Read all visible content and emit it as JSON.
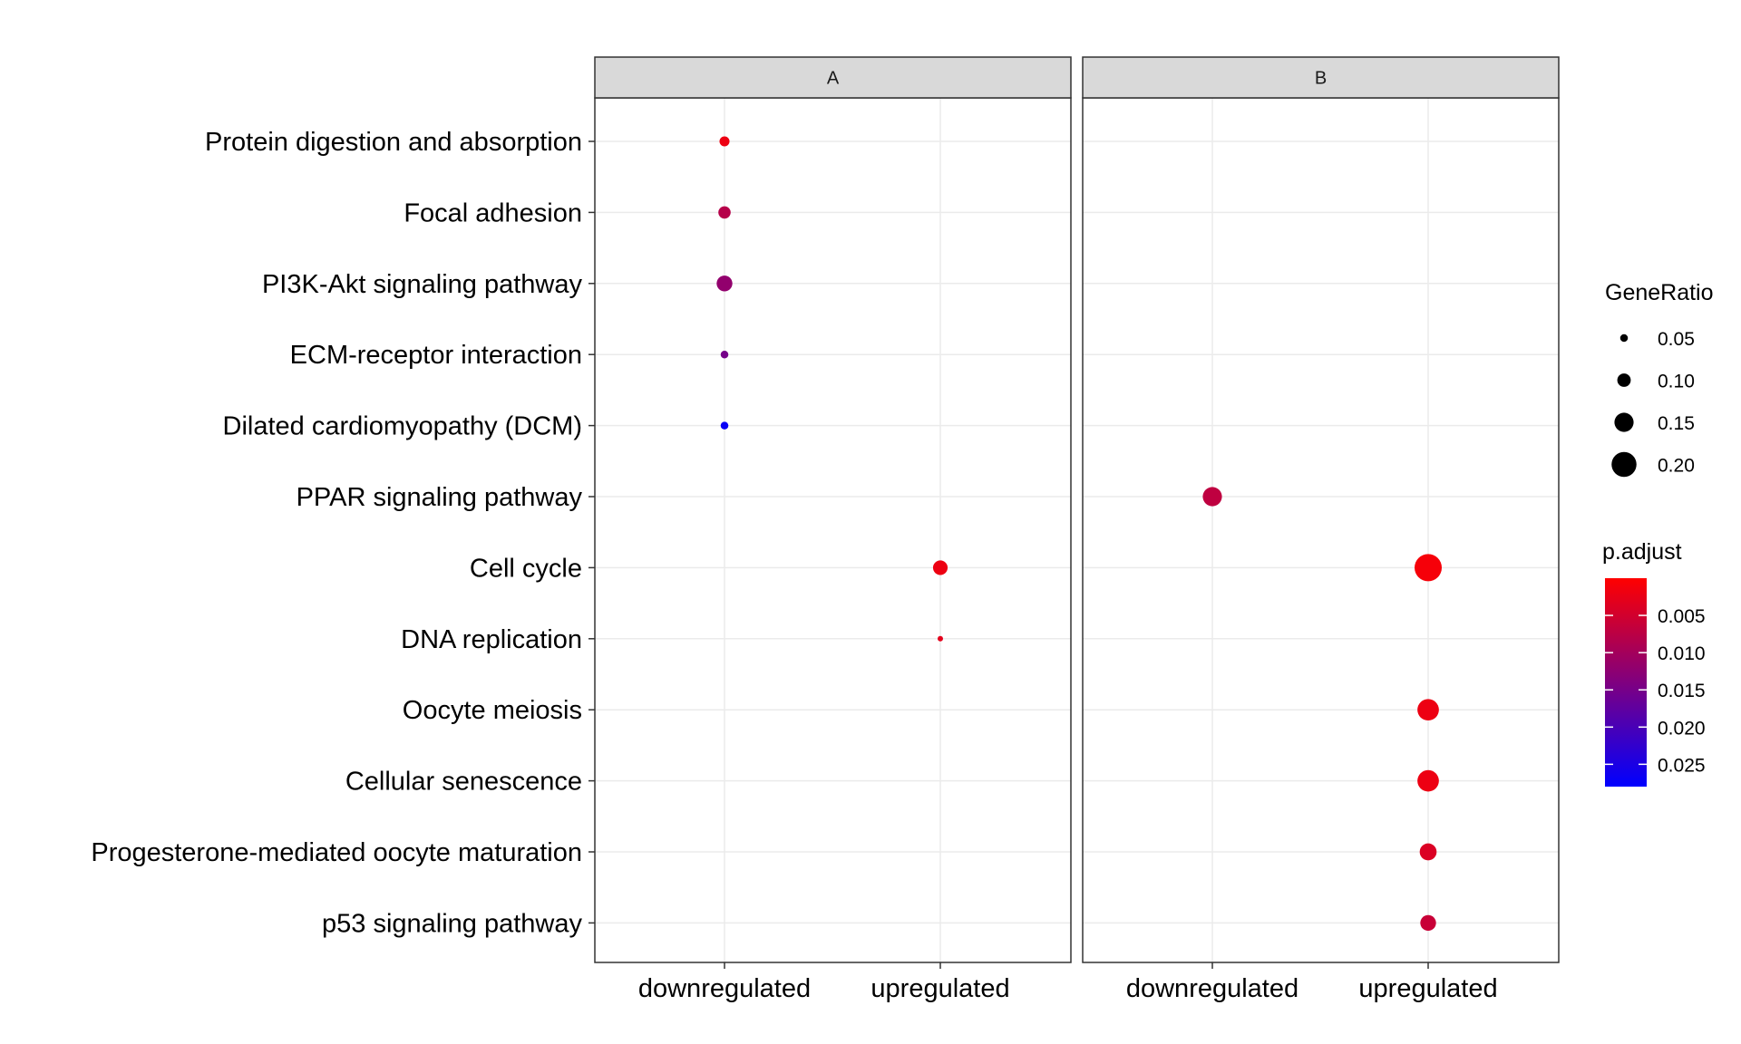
{
  "chart_data": {
    "type": "scatter",
    "panels": [
      "A",
      "B"
    ],
    "x_categories": [
      "downregulated",
      "upregulated"
    ],
    "y_categories": [
      "Protein digestion and absorption",
      "Focal adhesion",
      "PI3K-Akt signaling pathway",
      "ECM-receptor interaction",
      "Dilated cardiomyopathy (DCM)",
      "PPAR signaling pathway",
      "Cell cycle",
      "DNA replication",
      "Oocyte meiosis",
      "Cellular senescence",
      "Progesterone-mediated oocyte maturation",
      "p53 signaling pathway"
    ],
    "points": [
      {
        "panel": "A",
        "x": "downregulated",
        "y": "Protein digestion and absorption",
        "gene_ratio": 0.07,
        "p_adjust": 0.002
      },
      {
        "panel": "A",
        "x": "downregulated",
        "y": "Focal adhesion",
        "gene_ratio": 0.09,
        "p_adjust": 0.008
      },
      {
        "panel": "A",
        "x": "downregulated",
        "y": "PI3K-Akt signaling pathway",
        "gene_ratio": 0.12,
        "p_adjust": 0.012
      },
      {
        "panel": "A",
        "x": "downregulated",
        "y": "ECM-receptor interaction",
        "gene_ratio": 0.05,
        "p_adjust": 0.015
      },
      {
        "panel": "A",
        "x": "downregulated",
        "y": "Dilated cardiomyopathy (DCM)",
        "gene_ratio": 0.05,
        "p_adjust": 0.027
      },
      {
        "panel": "A",
        "x": "upregulated",
        "y": "Cell cycle",
        "gene_ratio": 0.11,
        "p_adjust": 0.002
      },
      {
        "panel": "A",
        "x": "upregulated",
        "y": "DNA replication",
        "gene_ratio": 0.03,
        "p_adjust": 0.003
      },
      {
        "panel": "B",
        "x": "downregulated",
        "y": "PPAR signaling pathway",
        "gene_ratio": 0.15,
        "p_adjust": 0.007
      },
      {
        "panel": "B",
        "x": "upregulated",
        "y": "Cell cycle",
        "gene_ratio": 0.22,
        "p_adjust": 0.001
      },
      {
        "panel": "B",
        "x": "upregulated",
        "y": "Oocyte meiosis",
        "gene_ratio": 0.17,
        "p_adjust": 0.002
      },
      {
        "panel": "B",
        "x": "upregulated",
        "y": "Cellular senescence",
        "gene_ratio": 0.17,
        "p_adjust": 0.002
      },
      {
        "panel": "B",
        "x": "upregulated",
        "y": "Progesterone-mediated oocyte maturation",
        "gene_ratio": 0.13,
        "p_adjust": 0.004
      },
      {
        "panel": "B",
        "x": "upregulated",
        "y": "p53 signaling pathway",
        "gene_ratio": 0.12,
        "p_adjust": 0.006
      }
    ],
    "legend": {
      "size_title": "GeneRatio",
      "size_breaks": [
        0.05,
        0.1,
        0.15,
        0.2
      ],
      "size_labels": [
        "0.05",
        "0.10",
        "0.15",
        "0.20"
      ],
      "color_title": "p.adjust",
      "color_breaks": [
        0.005,
        0.01,
        0.015,
        0.02,
        0.025
      ],
      "color_labels": [
        "0.005",
        "0.010",
        "0.015",
        "0.020",
        "0.025"
      ],
      "color_range": [
        0.0,
        0.028
      ],
      "color_low": "#FF0000",
      "color_high": "#0000FF",
      "placement": "right"
    },
    "grid": true
  }
}
